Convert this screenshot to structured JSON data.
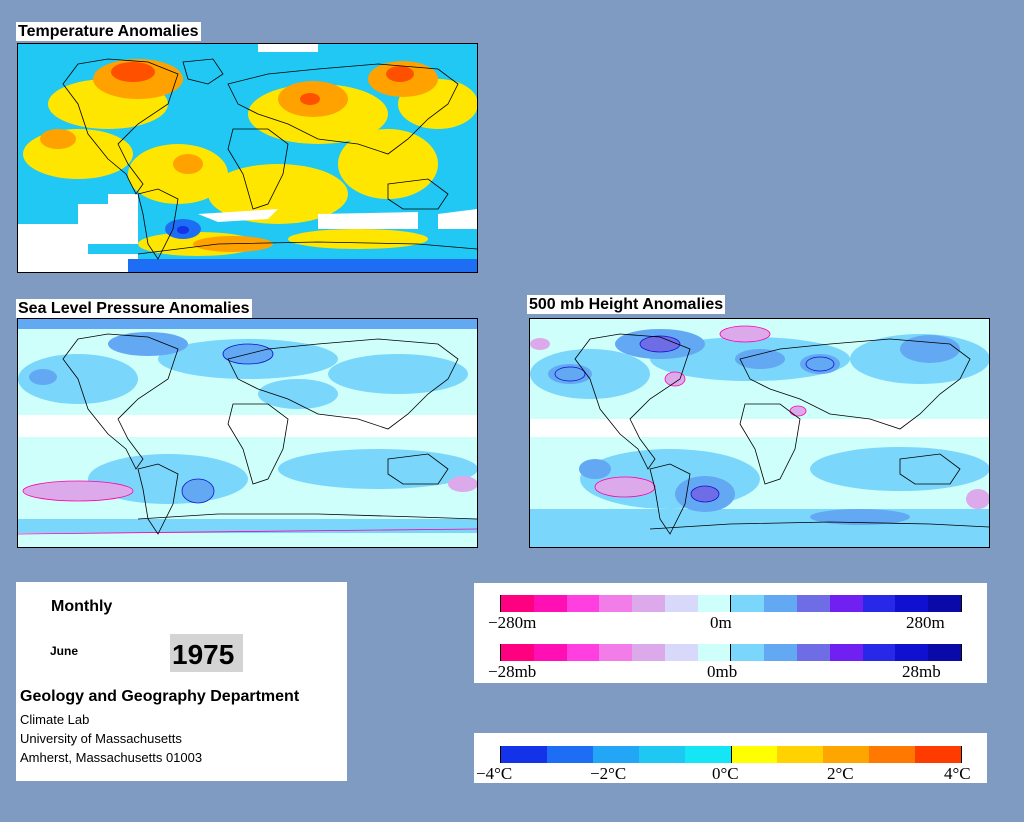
{
  "maps": {
    "temperature": {
      "title": "Temperature Anomalies"
    },
    "slp": {
      "title": "Sea Level Pressure Anomalies"
    },
    "height500": {
      "title": "500 mb Height Anomalies"
    }
  },
  "info": {
    "period": "Monthly",
    "month": "June",
    "year": "1975",
    "department": "Geology and Geography Department",
    "lab": "Climate Lab",
    "university": "University of Massachusetts",
    "address": "Amherst, Massachusetts 01003"
  },
  "legends": {
    "height": {
      "min": "−280m",
      "mid": "0m",
      "max": "280m"
    },
    "pressure": {
      "min": "−28mb",
      "mid": "0mb",
      "max": "28mb"
    },
    "temperature": {
      "labels": [
        "−4°C",
        "−2°C",
        "0°C",
        "2°C",
        "4°C"
      ]
    }
  },
  "colors": {
    "anomaly_scale": [
      "#ff0080",
      "#ff0fb4",
      "#ff3fdf",
      "#f27ce8",
      "#dca9eb",
      "#d8d8fa",
      "#cffffa",
      "#7ad6fb",
      "#63a8f3",
      "#6f6de5",
      "#7020f0",
      "#2828e8",
      "#1010d0",
      "#0a0aa8"
    ],
    "temperature_scale": [
      "#1432e8",
      "#1e6ef5",
      "#22a6f5",
      "#1ec8f2",
      "#14e6f5",
      "#ffff00",
      "#ffd200",
      "#ffa500",
      "#ff7800",
      "#ff3c00"
    ]
  }
}
